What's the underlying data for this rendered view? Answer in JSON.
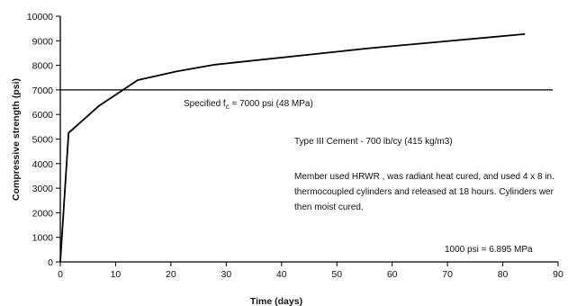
{
  "chart_data": {
    "type": "line",
    "xlabel": "Time  (days)",
    "ylabel": "Compressive strength (psi)",
    "xlim": [
      0,
      90
    ],
    "ylim": [
      0,
      10000
    ],
    "x_ticks": [
      "0",
      "10",
      "20",
      "30",
      "40",
      "50",
      "60",
      "70",
      "80",
      "90"
    ],
    "y_ticks": [
      "0",
      "1000",
      "2000",
      "3000",
      "4000",
      "5000",
      "6000",
      "7000",
      "8000",
      "9000",
      "10000"
    ],
    "grid": false,
    "series": [
      {
        "x": [
          0,
          1.5,
          7,
          14,
          21,
          28,
          56,
          84
        ],
        "y": [
          0,
          5250,
          6350,
          7400,
          7750,
          8030,
          8700,
          9270
        ]
      }
    ],
    "reference_line": {
      "y": 7000,
      "label_prefix": "Specified f",
      "label_sub": "c",
      "label_suffix": " = 7000 psi (48 MPa)"
    },
    "annotations": {
      "cement": "Type III Cement - 700 lb/cy (415 kg/m3)",
      "member_line1": "Member used HRWR , was radiant heat cured, and used 4 x 8 in.",
      "member_line2": "thermocoupled cylinders and released at 18 hours.  Cylinders wer",
      "member_line3": "then moist cured.",
      "conversion": "1000 psi = 6.895 MPa"
    }
  }
}
